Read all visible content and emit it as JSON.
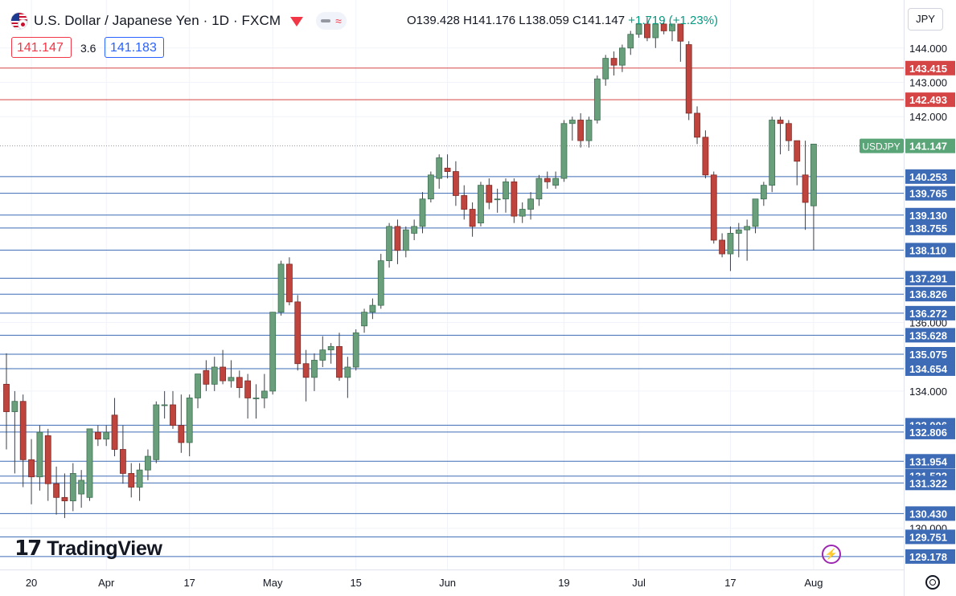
{
  "header": {
    "title": "U.S. Dollar / Japanese Yen · 1D · FXCM",
    "ohlc_open": "O139.428",
    "ohlc_high": "H141.176",
    "ohlc_low": "L138.059",
    "ohlc_close": "C141.147",
    "ohlc_change": "+1.719 (+1.23%)",
    "sell_price": "141.147",
    "spread": "3.6",
    "buy_price": "141.183",
    "currency": "JPY"
  },
  "branding": {
    "logo_text": "TradingView",
    "logo_mark": "17"
  },
  "icons": {
    "market_closed": "red-triangle-icon",
    "indicator": "flash-icon",
    "settings": "gear-icon"
  },
  "colors": {
    "up": "#6a9f7b",
    "down": "#c0443e",
    "support": "#3d6bb5",
    "resistance": "#d64545",
    "last_price": "#5aa577"
  },
  "chart_data": {
    "type": "candlestick",
    "symbol": "USDJPY",
    "interval": "1D",
    "last_price": 141.147,
    "ylim": [
      128.8,
      145.4
    ],
    "y_ticks": [
      130.0,
      134.0,
      136.0,
      142.0,
      143.0,
      144.0
    ],
    "y_tick_labels": [
      "130.000",
      "134.000",
      "136.000",
      "142.000",
      "143.000",
      "144.000"
    ],
    "x_ticks": [
      {
        "label": "20",
        "index": 3
      },
      {
        "label": "Apr",
        "index": 12
      },
      {
        "label": "17",
        "index": 22
      },
      {
        "label": "May",
        "index": 32
      },
      {
        "label": "15",
        "index": 42
      },
      {
        "label": "Jun",
        "index": 53
      },
      {
        "label": "19",
        "index": 67
      },
      {
        "label": "Jul",
        "index": 76
      },
      {
        "label": "17",
        "index": 87
      },
      {
        "label": "Aug",
        "index": 97
      }
    ],
    "candles": [
      {
        "o": 134.2,
        "h": 135.1,
        "l": 132.3,
        "c": 133.4
      },
      {
        "o": 133.4,
        "h": 134.0,
        "l": 131.6,
        "c": 133.7
      },
      {
        "o": 133.7,
        "h": 133.9,
        "l": 131.2,
        "c": 132.0
      },
      {
        "o": 132.0,
        "h": 132.6,
        "l": 130.7,
        "c": 131.5
      },
      {
        "o": 131.5,
        "h": 133.0,
        "l": 131.1,
        "c": 132.8
      },
      {
        "o": 132.7,
        "h": 132.9,
        "l": 130.8,
        "c": 131.3
      },
      {
        "o": 131.3,
        "h": 131.8,
        "l": 130.4,
        "c": 130.9
      },
      {
        "o": 130.9,
        "h": 131.6,
        "l": 130.3,
        "c": 130.8
      },
      {
        "o": 130.8,
        "h": 131.9,
        "l": 130.5,
        "c": 131.6
      },
      {
        "o": 131.0,
        "h": 131.7,
        "l": 130.6,
        "c": 131.4
      },
      {
        "o": 130.9,
        "h": 132.9,
        "l": 130.8,
        "c": 132.9
      },
      {
        "o": 132.8,
        "h": 133.0,
        "l": 132.4,
        "c": 132.6
      },
      {
        "o": 132.6,
        "h": 133.0,
        "l": 132.4,
        "c": 132.8
      },
      {
        "o": 133.3,
        "h": 133.8,
        "l": 132.1,
        "c": 132.3
      },
      {
        "o": 132.3,
        "h": 133.0,
        "l": 131.3,
        "c": 131.6
      },
      {
        "o": 131.6,
        "h": 131.9,
        "l": 130.9,
        "c": 131.2
      },
      {
        "o": 131.2,
        "h": 131.9,
        "l": 130.8,
        "c": 131.7
      },
      {
        "o": 131.7,
        "h": 132.3,
        "l": 131.4,
        "c": 132.1
      },
      {
        "o": 132.0,
        "h": 133.7,
        "l": 131.9,
        "c": 133.6
      },
      {
        "o": 133.6,
        "h": 134.0,
        "l": 133.2,
        "c": 133.6
      },
      {
        "o": 133.6,
        "h": 134.0,
        "l": 132.9,
        "c": 133.0
      },
      {
        "o": 133.0,
        "h": 133.9,
        "l": 132.2,
        "c": 132.5
      },
      {
        "o": 132.5,
        "h": 133.9,
        "l": 132.1,
        "c": 133.8
      },
      {
        "o": 133.8,
        "h": 134.5,
        "l": 133.5,
        "c": 134.5
      },
      {
        "o": 134.6,
        "h": 134.9,
        "l": 134.0,
        "c": 134.2
      },
      {
        "o": 134.2,
        "h": 135.0,
        "l": 134.0,
        "c": 134.7
      },
      {
        "o": 134.7,
        "h": 135.2,
        "l": 134.2,
        "c": 134.3
      },
      {
        "o": 134.3,
        "h": 134.9,
        "l": 134.1,
        "c": 134.4
      },
      {
        "o": 134.4,
        "h": 134.6,
        "l": 133.8,
        "c": 134.1
      },
      {
        "o": 134.3,
        "h": 134.5,
        "l": 133.2,
        "c": 133.8
      },
      {
        "o": 133.8,
        "h": 134.2,
        "l": 133.2,
        "c": 133.8
      },
      {
        "o": 133.8,
        "h": 134.5,
        "l": 133.5,
        "c": 134.0
      },
      {
        "o": 134.0,
        "h": 136.3,
        "l": 133.9,
        "c": 136.3
      },
      {
        "o": 136.3,
        "h": 137.8,
        "l": 136.2,
        "c": 137.7
      },
      {
        "o": 137.7,
        "h": 137.9,
        "l": 136.5,
        "c": 136.6
      },
      {
        "o": 136.6,
        "h": 136.8,
        "l": 134.6,
        "c": 134.8
      },
      {
        "o": 134.8,
        "h": 135.2,
        "l": 133.7,
        "c": 134.4
      },
      {
        "o": 134.4,
        "h": 135.1,
        "l": 134.0,
        "c": 134.9
      },
      {
        "o": 134.9,
        "h": 135.6,
        "l": 134.7,
        "c": 135.2
      },
      {
        "o": 135.2,
        "h": 135.4,
        "l": 134.8,
        "c": 135.3
      },
      {
        "o": 135.3,
        "h": 135.7,
        "l": 134.3,
        "c": 134.4
      },
      {
        "o": 134.4,
        "h": 135.0,
        "l": 133.8,
        "c": 134.7
      },
      {
        "o": 134.7,
        "h": 135.8,
        "l": 134.6,
        "c": 135.7
      },
      {
        "o": 135.9,
        "h": 136.4,
        "l": 135.7,
        "c": 136.3
      },
      {
        "o": 136.3,
        "h": 136.7,
        "l": 136.1,
        "c": 136.5
      },
      {
        "o": 136.5,
        "h": 138.0,
        "l": 136.4,
        "c": 137.8
      },
      {
        "o": 137.8,
        "h": 138.9,
        "l": 137.6,
        "c": 138.8
      },
      {
        "o": 138.8,
        "h": 139.0,
        "l": 137.7,
        "c": 138.1
      },
      {
        "o": 138.1,
        "h": 138.8,
        "l": 137.9,
        "c": 138.7
      },
      {
        "o": 138.6,
        "h": 139.0,
        "l": 138.4,
        "c": 138.8
      },
      {
        "o": 138.8,
        "h": 139.8,
        "l": 138.6,
        "c": 139.6
      },
      {
        "o": 139.6,
        "h": 140.4,
        "l": 139.5,
        "c": 140.3
      },
      {
        "o": 140.2,
        "h": 140.9,
        "l": 139.9,
        "c": 140.8
      },
      {
        "o": 140.5,
        "h": 140.9,
        "l": 140.2,
        "c": 140.4
      },
      {
        "o": 140.4,
        "h": 140.7,
        "l": 139.4,
        "c": 139.7
      },
      {
        "o": 139.7,
        "h": 140.0,
        "l": 139.0,
        "c": 139.3
      },
      {
        "o": 139.3,
        "h": 139.5,
        "l": 138.5,
        "c": 138.8
      },
      {
        "o": 138.9,
        "h": 140.1,
        "l": 138.8,
        "c": 140.0
      },
      {
        "o": 140.0,
        "h": 140.2,
        "l": 139.3,
        "c": 139.5
      },
      {
        "o": 139.6,
        "h": 139.9,
        "l": 139.2,
        "c": 139.6
      },
      {
        "o": 139.6,
        "h": 140.2,
        "l": 139.2,
        "c": 140.1
      },
      {
        "o": 140.1,
        "h": 140.2,
        "l": 138.9,
        "c": 139.1
      },
      {
        "o": 139.1,
        "h": 139.5,
        "l": 138.9,
        "c": 139.3
      },
      {
        "o": 139.3,
        "h": 139.8,
        "l": 139.0,
        "c": 139.6
      },
      {
        "o": 139.6,
        "h": 140.3,
        "l": 139.4,
        "c": 140.2
      },
      {
        "o": 140.2,
        "h": 140.4,
        "l": 139.9,
        "c": 140.1
      },
      {
        "o": 140.0,
        "h": 140.4,
        "l": 139.9,
        "c": 140.2
      },
      {
        "o": 140.2,
        "h": 141.9,
        "l": 140.1,
        "c": 141.8
      },
      {
        "o": 141.8,
        "h": 142.0,
        "l": 141.3,
        "c": 141.9
      },
      {
        "o": 141.9,
        "h": 142.1,
        "l": 141.1,
        "c": 141.3
      },
      {
        "o": 141.3,
        "h": 142.0,
        "l": 141.1,
        "c": 141.9
      },
      {
        "o": 141.9,
        "h": 143.2,
        "l": 141.8,
        "c": 143.1
      },
      {
        "o": 143.1,
        "h": 143.8,
        "l": 142.9,
        "c": 143.7
      },
      {
        "o": 143.7,
        "h": 143.9,
        "l": 143.2,
        "c": 143.5
      },
      {
        "o": 143.5,
        "h": 144.1,
        "l": 143.3,
        "c": 144.0
      },
      {
        "o": 144.0,
        "h": 144.5,
        "l": 143.8,
        "c": 144.4
      },
      {
        "o": 144.4,
        "h": 144.9,
        "l": 144.3,
        "c": 144.7
      },
      {
        "o": 144.7,
        "h": 144.9,
        "l": 144.2,
        "c": 144.3
      },
      {
        "o": 144.3,
        "h": 144.9,
        "l": 144.0,
        "c": 144.7
      },
      {
        "o": 144.7,
        "h": 144.8,
        "l": 144.4,
        "c": 144.5
      },
      {
        "o": 144.5,
        "h": 144.7,
        "l": 144.2,
        "c": 144.7
      },
      {
        "o": 144.7,
        "h": 144.7,
        "l": 143.6,
        "c": 144.2
      },
      {
        "o": 144.1,
        "h": 144.2,
        "l": 141.9,
        "c": 142.1
      },
      {
        "o": 142.1,
        "h": 142.3,
        "l": 141.2,
        "c": 141.4
      },
      {
        "o": 141.4,
        "h": 141.6,
        "l": 140.2,
        "c": 140.3
      },
      {
        "o": 140.3,
        "h": 140.4,
        "l": 138.3,
        "c": 138.4
      },
      {
        "o": 138.4,
        "h": 138.6,
        "l": 137.9,
        "c": 138.0
      },
      {
        "o": 138.0,
        "h": 138.8,
        "l": 137.5,
        "c": 138.6
      },
      {
        "o": 138.6,
        "h": 138.9,
        "l": 137.9,
        "c": 138.7
      },
      {
        "o": 138.7,
        "h": 139.0,
        "l": 137.8,
        "c": 138.8
      },
      {
        "o": 138.8,
        "h": 139.6,
        "l": 138.6,
        "c": 139.6
      },
      {
        "o": 139.6,
        "h": 140.1,
        "l": 139.4,
        "c": 140.0
      },
      {
        "o": 140.0,
        "h": 142.0,
        "l": 139.8,
        "c": 141.9
      },
      {
        "o": 141.9,
        "h": 142.0,
        "l": 140.9,
        "c": 141.8
      },
      {
        "o": 141.8,
        "h": 141.9,
        "l": 141.0,
        "c": 141.3
      },
      {
        "o": 141.3,
        "h": 141.3,
        "l": 140.0,
        "c": 140.7
      },
      {
        "o": 140.3,
        "h": 141.3,
        "l": 138.7,
        "c": 139.5
      },
      {
        "o": 139.4,
        "h": 141.2,
        "l": 138.1,
        "c": 141.2
      }
    ],
    "levels": [
      {
        "value": 143.415,
        "label": "143.415",
        "kind": "resistance"
      },
      {
        "value": 142.493,
        "label": "142.493",
        "kind": "resistance"
      },
      {
        "value": 140.253,
        "label": "140.253",
        "kind": "support"
      },
      {
        "value": 139.765,
        "label": "139.765",
        "kind": "support"
      },
      {
        "value": 139.13,
        "label": "139.130",
        "kind": "support"
      },
      {
        "value": 138.755,
        "label": "138.755",
        "kind": "support"
      },
      {
        "value": 138.11,
        "label": "138.110",
        "kind": "support"
      },
      {
        "value": 137.291,
        "label": "137.291",
        "kind": "support"
      },
      {
        "value": 136.826,
        "label": "136.826",
        "kind": "support"
      },
      {
        "value": 136.272,
        "label": "136.272",
        "kind": "support"
      },
      {
        "value": 135.628,
        "label": "135.628",
        "kind": "support"
      },
      {
        "value": 135.075,
        "label": "135.075",
        "kind": "support"
      },
      {
        "value": 134.654,
        "label": "134.654",
        "kind": "support"
      },
      {
        "value": 133.006,
        "label": "133.006",
        "kind": "support"
      },
      {
        "value": 132.806,
        "label": "132.806",
        "kind": "support"
      },
      {
        "value": 131.954,
        "label": "131.954",
        "kind": "support"
      },
      {
        "value": 131.522,
        "label": "131.522",
        "kind": "support"
      },
      {
        "value": 131.322,
        "label": "131.322",
        "kind": "support"
      },
      {
        "value": 130.43,
        "label": "130.430",
        "kind": "support"
      },
      {
        "value": 129.751,
        "label": "129.751",
        "kind": "support"
      },
      {
        "value": 129.178,
        "label": "129.178",
        "kind": "support"
      }
    ]
  }
}
